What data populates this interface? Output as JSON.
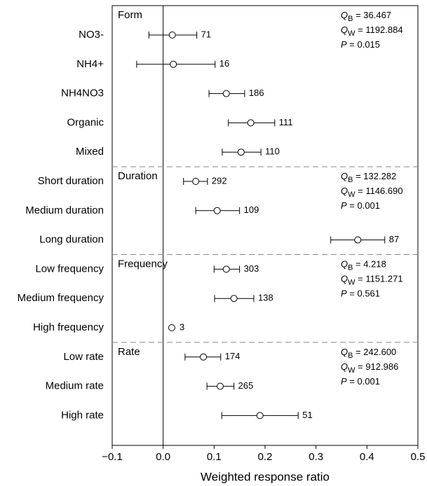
{
  "chart_data": {
    "type": "forest",
    "x_label": "Weighted response ratio",
    "xlim": [
      -0.1,
      0.5
    ],
    "xticks": [
      {
        "value": -0.1,
        "label": "−0.1"
      },
      {
        "value": 0,
        "label": "0.0"
      },
      0.1,
      0.2,
      0.3,
      0.4,
      0.5
    ],
    "groups": [
      {
        "name": "Form",
        "categories": [
          "NO3-",
          "NH4+",
          "NH4NO3",
          "Organic",
          "Mixed"
        ],
        "values": [
          0.018,
          0.02,
          0.124,
          0.172,
          0.153
        ],
        "ci_low": [
          -0.028,
          -0.052,
          0.09,
          0.128,
          0.116
        ],
        "ci_high": [
          0.066,
          0.102,
          0.16,
          0.219,
          0.192
        ],
        "n": [
          71,
          16,
          186,
          111,
          110
        ],
        "stats": [
          {
            "symbol": "Q",
            "subscript": "B",
            "text": " = 36.467"
          },
          {
            "symbol": "Q",
            "subscript": "W",
            "text": " = 1192.884"
          },
          {
            "symbol": "P",
            "text": " = 0.015"
          }
        ]
      },
      {
        "name": "Duration",
        "categories": [
          "Short duration",
          "Medium duration",
          "Long duration"
        ],
        "values": [
          0.064,
          0.106,
          0.382
        ],
        "ci_low": [
          0.04,
          0.064,
          0.329
        ],
        "ci_high": [
          0.087,
          0.15,
          0.435
        ],
        "n": [
          292,
          109,
          87
        ],
        "stats": [
          {
            "symbol": "Q",
            "subscript": "B",
            "text": " = 132.282"
          },
          {
            "symbol": "Q",
            "subscript": "W",
            "text": " = 1146.690"
          },
          {
            "symbol": "P",
            "text": " = 0.001"
          }
        ]
      },
      {
        "name": "Frequency",
        "categories": [
          "Low frequency",
          "Medium frequency",
          "High frequency"
        ],
        "values": [
          0.124,
          0.139,
          0.017
        ],
        "ci_low": [
          0.1,
          0.101,
          null
        ],
        "ci_high": [
          0.15,
          0.178,
          null
        ],
        "n": [
          303,
          138,
          3
        ],
        "stats": [
          {
            "symbol": "Q",
            "subscript": "B",
            "text": " = 4.218"
          },
          {
            "symbol": "Q",
            "subscript": "W",
            "text": " = 1151.271"
          },
          {
            "symbol": "P",
            "text": " = 0.561"
          }
        ]
      },
      {
        "name": "Rate",
        "categories": [
          "Low rate",
          "Medium rate",
          "High rate"
        ],
        "values": [
          0.079,
          0.112,
          0.19
        ],
        "ci_low": [
          0.043,
          0.086,
          0.115
        ],
        "ci_high": [
          0.113,
          0.139,
          0.265
        ],
        "n": [
          174,
          265,
          51
        ],
        "stats": [
          {
            "symbol": "Q",
            "subscript": "B",
            "text": " = 242.600"
          },
          {
            "symbol": "Q",
            "subscript": "W",
            "text": " = 912.986"
          },
          {
            "symbol": "P",
            "text": " = 0.001"
          }
        ]
      }
    ]
  }
}
